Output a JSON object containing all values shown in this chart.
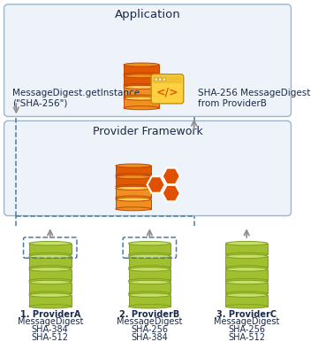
{
  "title": "Application",
  "framework_title": "Provider Framework",
  "left_label": "MessageDigest.getInstance\n(\"SHA-256\")",
  "right_label": "SHA-256 MessageDigest\nfrom ProviderB",
  "providers": [
    {
      "num": "1.",
      "name": "ProviderA",
      "algos": [
        "MessageDigest",
        "SHA-384",
        "SHA-512"
      ],
      "dashed": true
    },
    {
      "num": "2.",
      "name": "ProviderB",
      "algos": [
        "MessageDigest",
        "SHA-256",
        "SHA-384"
      ],
      "dashed": true
    },
    {
      "num": "3.",
      "name": "ProviderC",
      "algos": [
        "MessageDigest",
        "SHA-256",
        "SHA-512"
      ],
      "dashed": false
    }
  ],
  "app_box_color": "#edf3f9",
  "app_box_edge": "#9ab5cc",
  "fw_box_color": "#edf3f9",
  "fw_box_edge": "#9ab5cc",
  "stack_green_top": "#c8e06a",
  "stack_green_mid": "#a0c030",
  "stack_green_bot": "#80a020",
  "stack_orange_top": "#ffd050",
  "stack_orange_mid": "#f09020",
  "stack_orange_dark": "#e05800",
  "hex_color": "#e05000",
  "arrow_color": "#909090",
  "dashed_line_color": "#4a7aaa",
  "text_color": "#1a2a4a",
  "label_fontsize": 7.5,
  "provider_fontsize": 7.0,
  "title_fontsize": 9.5,
  "fw_title_fontsize": 9.0
}
